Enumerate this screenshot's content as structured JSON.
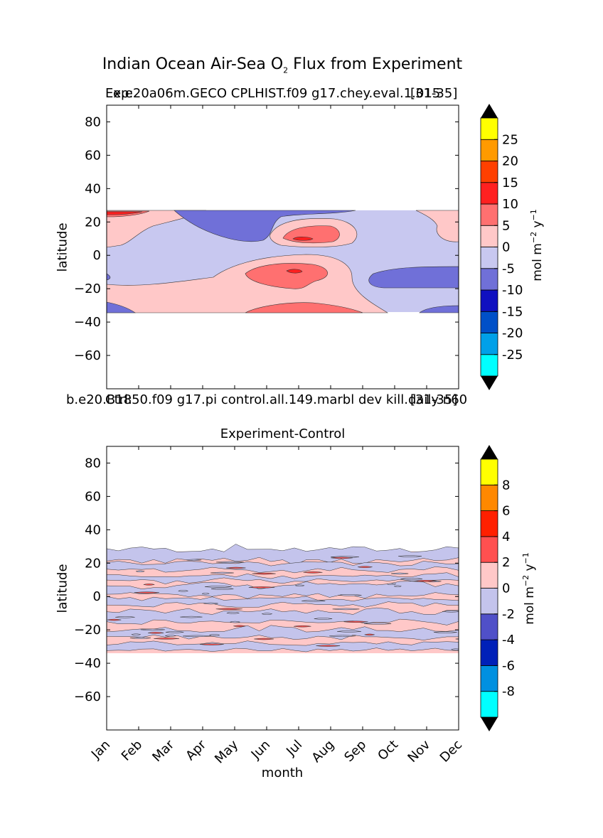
{
  "figure": {
    "suptitle_prefix": "Indian Ocean Air-Sea O",
    "suptitle_sub": "2",
    "suptitle_suffix": " Flux from Experiment",
    "xlabel": "month"
  },
  "colors": {
    "panel1_levels": [
      "#00ffff",
      "#00a0e8",
      "#0050c8",
      "#1010c0",
      "#7070d8",
      "#c8c8f0",
      "#ffc8c8",
      "#ff7070",
      "#ff2020",
      "#ff4000",
      "#ff9a00",
      "#ffff00"
    ],
    "panel2_levels": [
      "#00ffff",
      "#0090e0",
      "#0020b8",
      "#5050c8",
      "#c4c4ec",
      "#ffc8c8",
      "#ff5050",
      "#ff2000",
      "#ff8800",
      "#ffff00"
    ],
    "extend": "#000000"
  },
  "chart_data": [
    {
      "type": "heatmap",
      "subtitle_left": "Exp:",
      "subtitle_center": "e.e20a06m.GECO CPLHIST.f09 g17.chey.eval.1.015",
      "subtitle_right": "[31-35]",
      "ylabel": "latitude",
      "ylim": [
        -80,
        90
      ],
      "yticks": [
        "80",
        "60",
        "40",
        "20",
        "0",
        "−20",
        "−40",
        "−60"
      ],
      "ytick_values": [
        80,
        60,
        40,
        20,
        0,
        -20,
        -40,
        -60
      ],
      "data_lat_range": [
        -34,
        27
      ],
      "colorbar": {
        "label_main": "mol m",
        "label_exp1": "−2",
        "label_mid": " y",
        "label_exp2": "−1",
        "boundaries": [
          -30,
          -25,
          -20,
          -15,
          -10,
          -5,
          0,
          5,
          10,
          15,
          20,
          25,
          30
        ],
        "tick_labels": [
          "25",
          "20",
          "15",
          "10",
          "5",
          "0",
          "-5",
          "-10",
          "-15",
          "-20",
          "-25"
        ],
        "tick_values": [
          25,
          20,
          15,
          10,
          5,
          0,
          -5,
          -10,
          -15,
          -20,
          -25
        ]
      },
      "regions": [
        {
          "value": -7,
          "desc": "northern negative band"
        },
        {
          "value": -7,
          "desc": "south-east negative"
        },
        {
          "value": 2,
          "desc": "south positive"
        },
        {
          "value": 7,
          "desc": "central positive"
        },
        {
          "value": 12,
          "desc": "peak"
        }
      ]
    },
    {
      "type": "heatmap",
      "subtitle_top_left": "Ctrl:",
      "subtitle_top_center": "b.e20.B1850.f09 g17.pi control.all.149.marbl dev kill.daily n60",
      "subtitle_top_right": "[31-35]",
      "title": "Experiment-Control",
      "ylabel": "latitude",
      "ylim": [
        -80,
        90
      ],
      "yticks": [
        "80",
        "60",
        "40",
        "20",
        "0",
        "−20",
        "−40",
        "−60"
      ],
      "ytick_values": [
        80,
        60,
        40,
        20,
        0,
        -20,
        -40,
        -60
      ],
      "data_lat_range": [
        -34,
        27
      ],
      "xticks": [
        "Jan",
        "Feb",
        "Mar",
        "Apr",
        "May",
        "Jun",
        "Jul",
        "Aug",
        "Sep",
        "Oct",
        "Nov",
        "Dec"
      ],
      "colorbar": {
        "label_main": "mol m",
        "label_exp1": "−2",
        "label_mid": " y",
        "label_exp2": "−1",
        "boundaries": [
          -10,
          -8,
          -6,
          -4,
          -2,
          0,
          2,
          4,
          6,
          8,
          10
        ],
        "tick_labels": [
          "8",
          "6",
          "4",
          "2",
          "0",
          "-2",
          "-4",
          "-6",
          "-8"
        ],
        "tick_values": [
          8,
          6,
          4,
          2,
          0,
          -2,
          -4,
          -6,
          -8
        ]
      },
      "regions": [
        {
          "value": -1,
          "desc": "negative streaks"
        },
        {
          "value": 1,
          "desc": "positive background"
        }
      ]
    }
  ]
}
